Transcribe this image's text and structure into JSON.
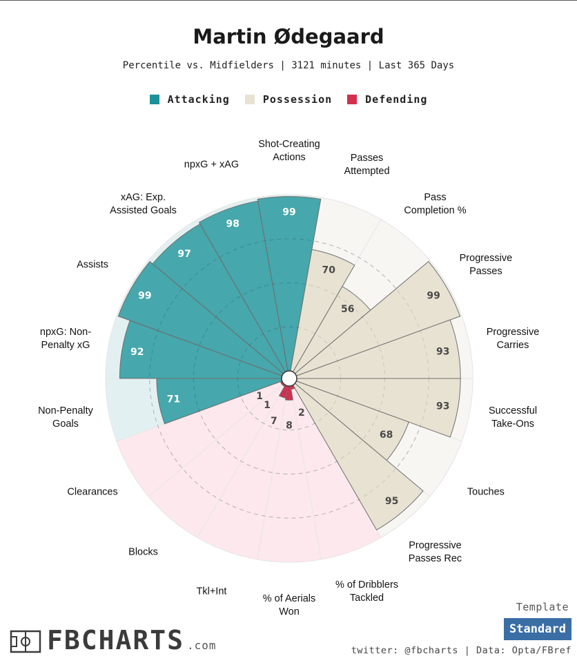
{
  "header": {
    "title": "Martin Ødegaard",
    "subtitle": "Percentile vs. Midfielders | 3121 minutes | Last 365 Days"
  },
  "legend": [
    {
      "label": "Attacking",
      "color": "#1a9298"
    },
    {
      "label": "Possession",
      "color": "#e8e2d2"
    },
    {
      "label": "Defending",
      "color": "#d32f4f"
    }
  ],
  "chart_data": {
    "type": "radar",
    "title": "Martin Ødegaard",
    "subtitle": "Percentile vs. Midfielders | 3121 minutes | Last 365 Days",
    "scale": [
      0,
      100
    ],
    "categories": [
      {
        "label": "Shot-Creating\nActions",
        "value": 99,
        "group": "Attacking"
      },
      {
        "label": "Passes\nAttempted",
        "value": 70,
        "group": "Possession"
      },
      {
        "label": "Pass\nCompletion %",
        "value": 56,
        "group": "Possession"
      },
      {
        "label": "Progressive\nPasses",
        "value": 99,
        "group": "Possession"
      },
      {
        "label": "Progressive\nCarries",
        "value": 93,
        "group": "Possession"
      },
      {
        "label": "Successful\nTake-Ons",
        "value": 93,
        "group": "Possession"
      },
      {
        "label": "Touches",
        "value": 68,
        "group": "Possession"
      },
      {
        "label": "Progressive\nPasses Rec",
        "value": 95,
        "group": "Possession"
      },
      {
        "label": "% of Dribblers\nTackled",
        "value": 2,
        "group": "Defending"
      },
      {
        "label": "% of Aerials\nWon",
        "value": 8,
        "group": "Defending"
      },
      {
        "label": "Tkl+Int",
        "value": 7,
        "group": "Defending"
      },
      {
        "label": "Blocks",
        "value": 1,
        "group": "Defending"
      },
      {
        "label": "Clearances",
        "value": 1,
        "group": "Defending"
      },
      {
        "label": "Non-Penalty\nGoals",
        "value": 71,
        "group": "Attacking"
      },
      {
        "label": "npxG: Non-\nPenalty xG",
        "value": 92,
        "group": "Attacking"
      },
      {
        "label": "Assists",
        "value": 99,
        "group": "Attacking"
      },
      {
        "label": "xAG: Exp.\nAssisted Goals",
        "value": 97,
        "group": "Attacking"
      },
      {
        "label": "npxG + xAG",
        "value": 98,
        "group": "Attacking"
      }
    ],
    "group_colors": {
      "Attacking": {
        "fill": "#1a9298",
        "background": "#e3f0f1",
        "text": "#ffffff"
      },
      "Possession": {
        "fill": "#e8e2d2",
        "background": "#f7f6f3",
        "text": "#555555"
      },
      "Defending": {
        "fill": "#d32f4f",
        "background": "#fde8ed",
        "text": "#555555"
      }
    }
  },
  "footer": {
    "template_label": "Template",
    "template_value": "Standard",
    "credit": "twitter: @fbcharts | Data: Opta/FBref",
    "brand": "FBCHARTS",
    "brand_suffix": ".com"
  }
}
